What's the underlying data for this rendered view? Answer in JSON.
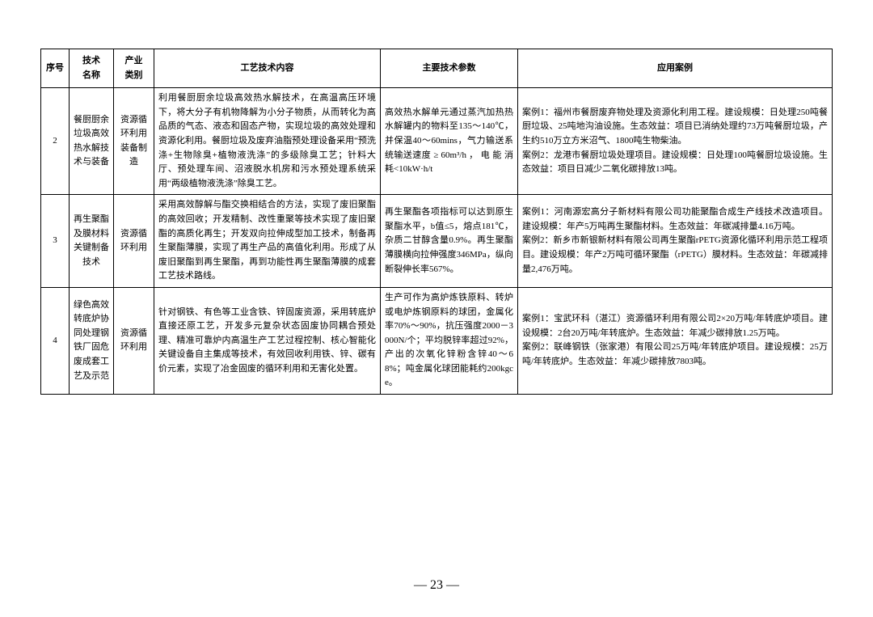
{
  "table": {
    "headers": {
      "num": "序号",
      "name": "技术\n名称",
      "category": "产业\n类别",
      "tech_content": "工艺技术内容",
      "tech_params": "主要技术参数",
      "app_cases": "应用案例"
    },
    "rows": [
      {
        "num": "2",
        "name": "餐厨厨余垃圾高效热水解技术与装备",
        "category": "资源循环利用装备制造",
        "tech_content": "利用餐厨厨余垃圾高效热水解技术，在高温高压环境下，将大分子有机物降解为小分子物质，从而转化为高品质的气态、液态和固态产物，实现垃圾的高效处理和资源化利用。餐厨垃圾及废弃油脂预处理设备采用“预洗涤+生物除臭+植物液洗涤”的多级除臭工艺；针料大厅、预处理车间、沼液脱水机房和污水预处理系统采用“两级植物液洗涤”除臭工艺。",
        "tech_params": "高效热水解单元通过蒸汽加热热水解罐内的物料至135～140℃，并保温40～60mins，气力输送系统输送速度 ≥ 60m³/h ， 电 能 消 耗<10kW·h/t",
        "app_cases": "案例1：福州市餐厨废弃物处理及资源化利用工程。建设规模：日处理250吨餐厨垃圾、25吨地沟油设施。生态效益：项目已消纳处理约73万吨餐厨垃圾，产生约510万立方米沼气、1800吨生物柴油。\n案例2：龙港市餐厨垃圾处理项目。建设规模：日处理100吨餐厨垃圾设施。生态效益：项目日减少二氧化碳排放13吨。"
      },
      {
        "num": "3",
        "name": "再生聚酯及膜材料关键制备技术",
        "category": "资源循环利用",
        "tech_content": "采用高效醇解与酯交换相结合的方法，实现了废旧聚酯的高效回收；开发精制、改性重聚等技术实现了废旧聚酯的高质化再生；开发双向拉伸成型加工技术，制备再生聚酯薄膜，实现了再生产品的高值化利用。形成了从废旧聚酯到再生聚酯，再到功能性再生聚酯薄膜的成套工艺技术路线。",
        "tech_params": "再生聚酯各项指标可以达到原生聚酯水平，b值≤5，熔点181℃，杂质二甘醇含量0.9%。再生聚酯薄膜横向拉伸强度346MPa，纵向断裂伸长率567%。",
        "app_cases": "案例1：河南源宏高分子新材料有限公司功能聚酯合成生产线技术改造项目。建设规模：年产5万吨再生聚酯材料。生态效益：年碳减排量4.16万吨。\n案例2：新乡市新银新材料有限公司再生聚酯rPETG资源化循环利用示范工程项目。建设规模：年产2万吨可循环聚酯（rPETG）膜材料。生态效益：年碳减排量2,476万吨。"
      },
      {
        "num": "4",
        "name": "绿色高效转底炉协同处理钢铁厂固危废成套工艺及示范",
        "category": "资源循环利用",
        "tech_content": "针对钢铁、有色等工业含铁、锌固废资源，采用转底炉直接还原工艺，开发多元复杂状态固废协同耦合预处理、精准可靠炉内高温生产工艺过程控制、核心智能化关键设备自主集成等技术，有效回收利用铁、锌、碳有价元素，实现了冶金固废的循环利用和无害化处置。",
        "tech_params": "生产可作为高炉炼铁原料、转炉或电炉炼钢原料的球团，金属化率70%～90%，抗压强度2000－3000N/个；平均脱锌率超过92%，产出的次氧化锌粉含锌40～68%；吨金属化球团能耗约200kgce。",
        "app_cases": "案例1：宝武环科（湛江）资源循环利用有限公司2×20万吨/年转底炉项目。建设规模：2台20万吨/年转底炉。生态效益：年减少碳排放1.25万吨。\n案例2：联峰钢铁（张家港）有限公司25万吨/年转底炉项目。建设规模：25万吨/年转底炉。生态效益：年减少碳排放7803吨。"
      }
    ]
  },
  "page_number": "— 23 —"
}
